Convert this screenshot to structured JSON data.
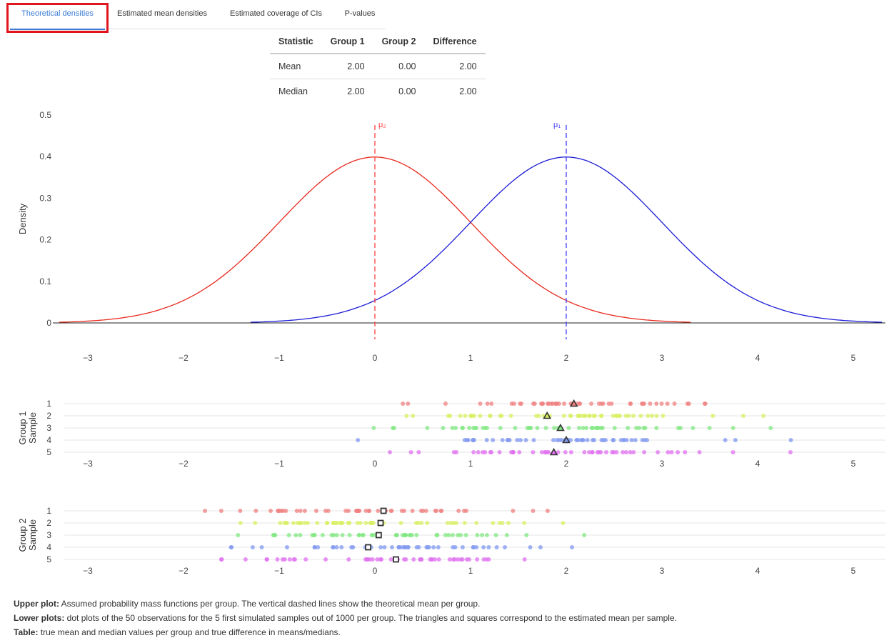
{
  "tabs": [
    {
      "label": "Theoretical densities",
      "active": true
    },
    {
      "label": "Estimated mean densities",
      "active": false
    },
    {
      "label": "Estimated coverage of CIs",
      "active": false
    },
    {
      "label": "P-values",
      "active": false
    }
  ],
  "table": {
    "headers": [
      "Statistic",
      "Group 1",
      "Group 2",
      "Difference"
    ],
    "rows": [
      [
        "Mean",
        "2.00",
        "0.00",
        "2.00"
      ],
      [
        "Median",
        "2.00",
        "0.00",
        "2.00"
      ]
    ]
  },
  "chart_data": [
    {
      "type": "line",
      "ylabel": "Density",
      "xlabel": "",
      "xlim": [
        -3.3,
        5.3
      ],
      "ylim": [
        0,
        0.5
      ],
      "xticks": [
        "−3",
        "−2",
        "−1",
        "0",
        "1",
        "2",
        "3",
        "4",
        "5"
      ],
      "yticks": [
        "0",
        "0.1",
        "0.2",
        "0.3",
        "0.4",
        "0.5"
      ],
      "series": [
        {
          "name": "μ₂",
          "distribution": "normal",
          "mean": 0,
          "sd": 1,
          "x_range": [
            -3.3,
            3.3
          ],
          "color": "#e8281c"
        },
        {
          "name": "μ₁",
          "distribution": "normal",
          "mean": 2,
          "sd": 1,
          "x_range": [
            -1.3,
            5.3
          ],
          "color": "#1a1ad6"
        }
      ],
      "vlines": [
        {
          "x": 0,
          "label": "μ₂",
          "color": "#ff4040"
        },
        {
          "x": 2,
          "label": "μ₁",
          "color": "#4040ff"
        }
      ]
    },
    {
      "type": "scatter",
      "ylabel": "Group 1\nSample",
      "ylabel_lines": [
        "Group 1",
        "Sample"
      ],
      "samples": [
        1,
        2,
        3,
        4,
        5
      ],
      "xticks": [
        "−3",
        "−2",
        "−1",
        "0",
        "1",
        "2",
        "3",
        "4",
        "5"
      ],
      "sample_means": [
        2.08,
        1.8,
        1.94,
        2.0,
        1.87
      ],
      "mean_marker": "triangle",
      "observations_per_sample": 50
    },
    {
      "type": "scatter",
      "ylabel": "Group 2\nSample",
      "ylabel_lines": [
        "Group 2",
        "Sample"
      ],
      "samples": [
        1,
        2,
        3,
        4,
        5
      ],
      "xticks": [
        "−3",
        "−2",
        "−1",
        "0",
        "1",
        "2",
        "3",
        "4",
        "5"
      ],
      "sample_means": [
        0.09,
        0.06,
        0.04,
        -0.07,
        0.22
      ],
      "mean_marker": "square",
      "observations_per_sample": 50
    }
  ],
  "sample_colors": [
    "#f08080",
    "#d8f060",
    "#80e880",
    "#8098f0",
    "#e070f0"
  ],
  "caption": [
    {
      "bold": "Upper plot:",
      "text": " Assumed probability mass functions per group. The vertical dashed lines show the theoretical mean per group."
    },
    {
      "bold": "Lower plots:",
      "text": " dot plots of the 50 observations for the 5 first simulated samples out of 1000 per group. The triangles and squares correspond to the estimated mean per sample."
    },
    {
      "bold": "Table:",
      "text": " true mean and median values per group and true difference in means/medians."
    }
  ]
}
